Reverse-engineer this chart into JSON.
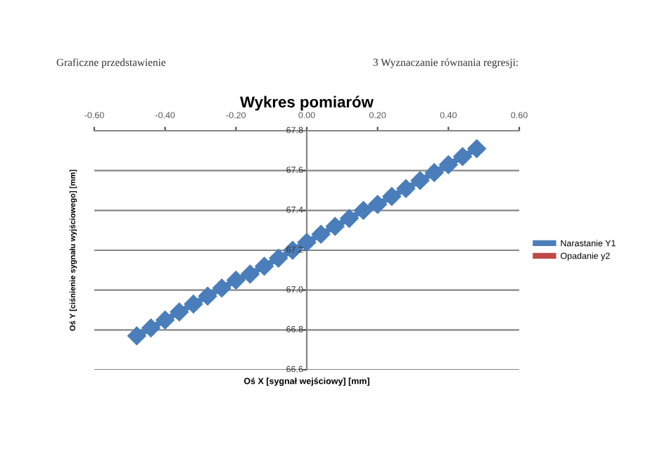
{
  "chart_data": {
    "type": "line",
    "title": "Wykres pomiarów",
    "xlabel": "Oś X [sygnał wejściowy] [mm]",
    "ylabel": "Oś Y [ciśnienie sygnału wyjściowego] [mm]",
    "annotations": [
      "Graficzne przedstawienie",
      "3 Wyznaczanie równania regresji:"
    ],
    "x": [
      -0.48,
      -0.44,
      -0.4,
      -0.36,
      -0.32,
      -0.28,
      -0.24,
      -0.2,
      -0.16,
      -0.12,
      -0.08,
      -0.04,
      0,
      0.04,
      0.08,
      0.12,
      0.16,
      0.2,
      0.24,
      0.28,
      0.32,
      0.36,
      0.4,
      0.44,
      0.48
    ],
    "series": [
      {
        "name": "Narastanie Y1",
        "color": "#4a7ebb",
        "values": [
          66.77,
          66.81,
          66.85,
          66.89,
          66.93,
          66.97,
          67.01,
          67.05,
          67.08,
          67.12,
          67.16,
          67.2,
          67.24,
          67.28,
          67.32,
          67.36,
          67.4,
          67.43,
          67.47,
          67.51,
          67.55,
          67.59,
          67.63,
          67.67,
          67.71
        ]
      },
      {
        "name": "Opadanie y2",
        "color": "#be4b48",
        "values": [
          null,
          null,
          null,
          null,
          null,
          null,
          null,
          null,
          null,
          null,
          null,
          null,
          null,
          null,
          null,
          null,
          null,
          null,
          null,
          null,
          null,
          null,
          null,
          null,
          null
        ]
      }
    ],
    "xlim": [
      -0.6,
      0.6
    ],
    "xticks": [
      {
        "value": -0.6,
        "label": "-0.60"
      },
      {
        "value": -0.4,
        "label": "-0.40"
      },
      {
        "value": -0.2,
        "label": "-0.20"
      },
      {
        "value": 0,
        "label": "0.00"
      },
      {
        "value": 0.2,
        "label": "0.20"
      },
      {
        "value": 0.4,
        "label": "0.40"
      },
      {
        "value": 0.6,
        "label": "0.60"
      }
    ],
    "ylim": [
      66.6,
      67.8
    ],
    "yticks": [
      66.6,
      66.8,
      {
        "value": 67.0,
        "label": "67.0"
      },
      67.2,
      67.4,
      67.6,
      67.8
    ],
    "grid": "y",
    "legend": "right",
    "marker": "diamond",
    "line_style": "solid"
  }
}
